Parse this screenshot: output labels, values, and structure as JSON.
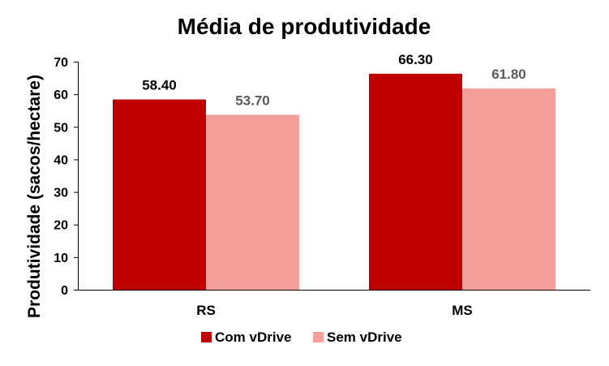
{
  "chart_data": {
    "type": "bar",
    "title": "Média de produtividade",
    "xlabel": "",
    "ylabel": "Produtividade (sacos/hectare)",
    "categories": [
      "RS",
      "MS"
    ],
    "series": [
      {
        "name": "Com vDrive",
        "values": [
          58.4,
          66.3
        ],
        "labels": [
          "58.40",
          "66.30"
        ],
        "color": "#c00000",
        "label_color": "#000000"
      },
      {
        "name": "Sem vDrive",
        "values": [
          53.7,
          61.8
        ],
        "labels": [
          "53.70",
          "61.80"
        ],
        "color": "#f4a09a",
        "label_color": "#595959"
      }
    ],
    "ylim": [
      0,
      70
    ],
    "yticks": [
      "0",
      "10",
      "20",
      "30",
      "40",
      "50",
      "60",
      "70"
    ],
    "grid": false,
    "legend": "bottom"
  }
}
